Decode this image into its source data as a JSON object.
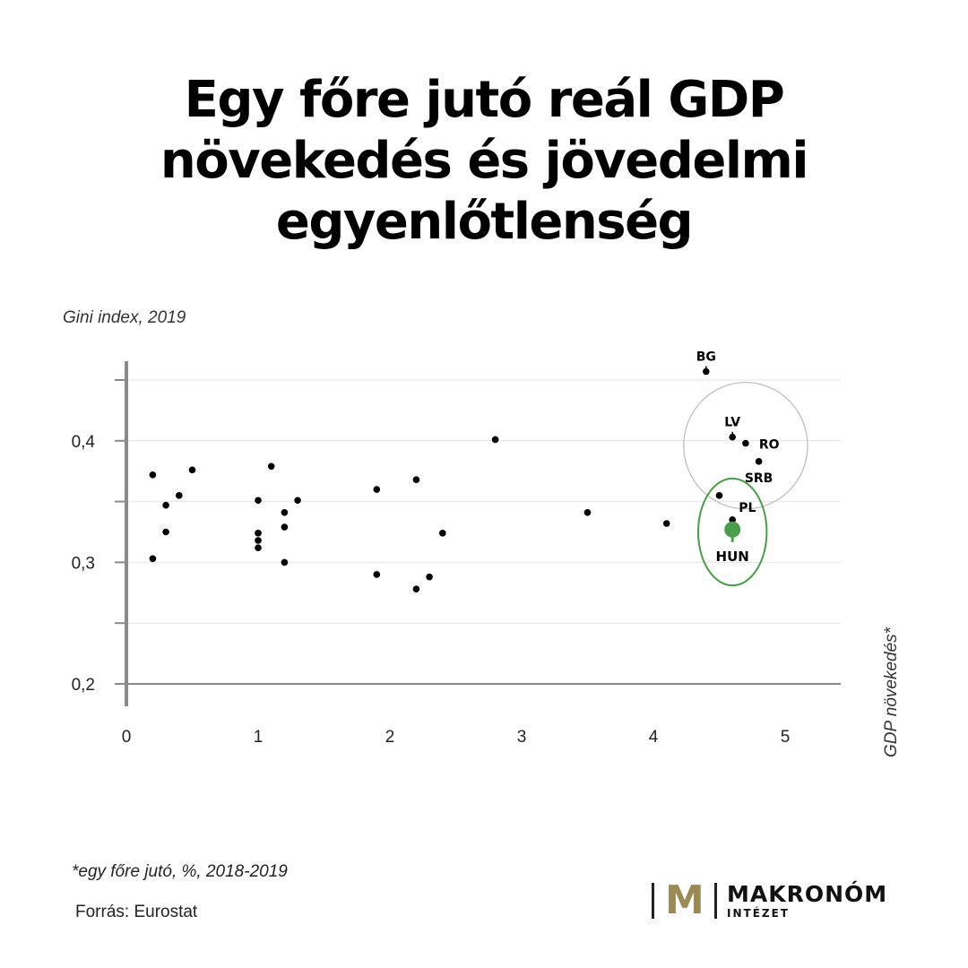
{
  "title_lines": [
    "Egy főre jutó reál GDP",
    "növekedés és jövedelmi",
    "egyenlőtlenség"
  ],
  "footnote": "*egy főre jutó, %, 2018-2019",
  "source": "Forrás: Eurostat",
  "logo": {
    "mark": "M",
    "name": "MAKRONÓM",
    "sub": "INTÉZET",
    "accent": "#9a8a55"
  },
  "chart_data": {
    "type": "scatter",
    "ylabel": "Gini index, 2019",
    "xlabel": "GDP növekedés*",
    "xlim": [
      0,
      5.4
    ],
    "ylim": [
      0.18,
      0.46
    ],
    "xticks": [
      0,
      1,
      2,
      3,
      4,
      5
    ],
    "yticks": [
      0.2,
      0.3,
      0.4
    ],
    "ytick_labels": [
      "0,2",
      "0,3",
      "0,4"
    ],
    "grid": true,
    "highlight_color": "#4a9d4a",
    "points": [
      {
        "x": 0.2,
        "y": 0.372
      },
      {
        "x": 0.5,
        "y": 0.376
      },
      {
        "x": 0.3,
        "y": 0.347
      },
      {
        "x": 0.4,
        "y": 0.355
      },
      {
        "x": 0.3,
        "y": 0.325
      },
      {
        "x": 0.2,
        "y": 0.303
      },
      {
        "x": 1.0,
        "y": 0.351
      },
      {
        "x": 1.1,
        "y": 0.379
      },
      {
        "x": 1.0,
        "y": 0.324
      },
      {
        "x": 1.0,
        "y": 0.318
      },
      {
        "x": 1.0,
        "y": 0.312
      },
      {
        "x": 1.2,
        "y": 0.341
      },
      {
        "x": 1.2,
        "y": 0.329
      },
      {
        "x": 1.2,
        "y": 0.3
      },
      {
        "x": 1.3,
        "y": 0.351
      },
      {
        "x": 1.9,
        "y": 0.36
      },
      {
        "x": 1.9,
        "y": 0.29
      },
      {
        "x": 2.2,
        "y": 0.368
      },
      {
        "x": 2.2,
        "y": 0.278
      },
      {
        "x": 2.3,
        "y": 0.288
      },
      {
        "x": 2.4,
        "y": 0.324
      },
      {
        "x": 2.8,
        "y": 0.401
      },
      {
        "x": 3.5,
        "y": 0.341
      },
      {
        "x": 4.1,
        "y": 0.332
      },
      {
        "x": 4.5,
        "y": 0.355
      },
      {
        "x": 4.4,
        "y": 0.457,
        "label": "BG"
      },
      {
        "x": 4.6,
        "y": 0.403,
        "label": "LV"
      },
      {
        "x": 4.7,
        "y": 0.398,
        "label": "RO"
      },
      {
        "x": 4.8,
        "y": 0.383,
        "label": "SRB"
      },
      {
        "x": 4.6,
        "y": 0.335,
        "label": "PL"
      },
      {
        "x": 4.6,
        "y": 0.327,
        "label": "HUN",
        "highlight": true
      }
    ],
    "annotations": [
      {
        "type": "circle",
        "cx": 4.7,
        "cy": 0.396,
        "rx": 0.47,
        "ry": 0.052,
        "color": "#bbbbbb"
      },
      {
        "type": "circle",
        "cx": 4.6,
        "cy": 0.325,
        "rx": 0.26,
        "ry": 0.044,
        "color": "#4a9d4a"
      }
    ]
  }
}
